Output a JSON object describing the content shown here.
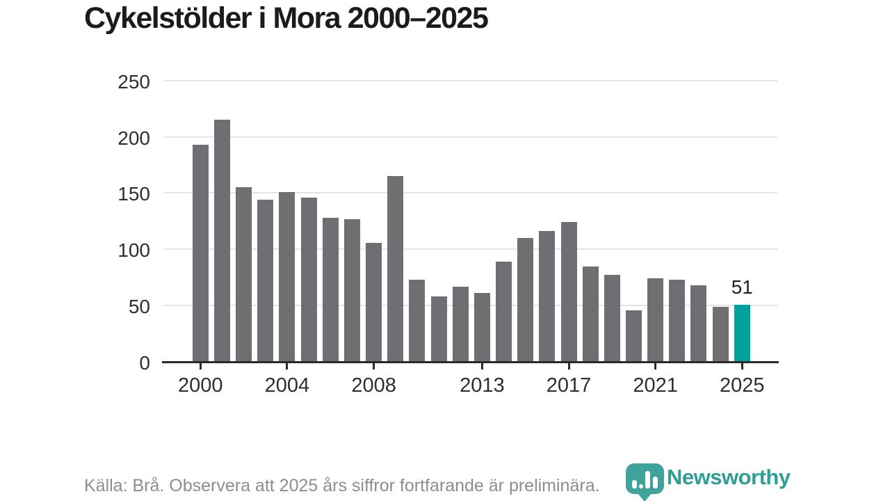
{
  "title": "Cykelstölder i Mora 2000–2025",
  "chart_data": {
    "type": "bar",
    "title": "Cykelstölder i Mora 2000–2025",
    "x": [
      2000,
      2001,
      2002,
      2003,
      2004,
      2005,
      2006,
      2007,
      2008,
      2009,
      2010,
      2011,
      2012,
      2013,
      2014,
      2015,
      2016,
      2017,
      2018,
      2019,
      2020,
      2021,
      2022,
      2023,
      2024,
      2025
    ],
    "values": [
      193,
      215,
      155,
      144,
      151,
      146,
      128,
      127,
      106,
      165,
      73,
      58,
      67,
      61,
      89,
      110,
      116,
      124,
      85,
      77,
      46,
      74,
      73,
      68,
      49,
      51
    ],
    "highlighted_year": 2025,
    "annotation": {
      "year": 2025,
      "text": "51"
    },
    "x_tick_years": [
      2000,
      2004,
      2008,
      2013,
      2017,
      2021,
      2025
    ],
    "x_tick_labels": [
      "2000",
      "2004",
      "2008",
      "2013",
      "2017",
      "2021",
      "2025"
    ],
    "y_ticks": [
      0,
      50,
      100,
      150,
      200,
      250
    ],
    "y_tick_labels": [
      "0",
      "50",
      "100",
      "150",
      "200",
      "250"
    ],
    "ylim": [
      0,
      250
    ],
    "grid": true,
    "legend": "none",
    "colors": {
      "bar": "#6e6e73",
      "highlight": "#00a19a",
      "grid": "#e4e4e4",
      "axis": "#2a2a2a",
      "tick_text": "#2e2e2e",
      "annotation_text": "#1f1f1f"
    }
  },
  "footer": {
    "source_note": "Källa: Brå. Observera att 2025 års siffror fortfarande är preliminära.",
    "logo_text": "Newsworthy",
    "logo_color": "#3fa29b",
    "logo_text_color": "#2f9e97",
    "note_color": "#8d8d8d"
  }
}
